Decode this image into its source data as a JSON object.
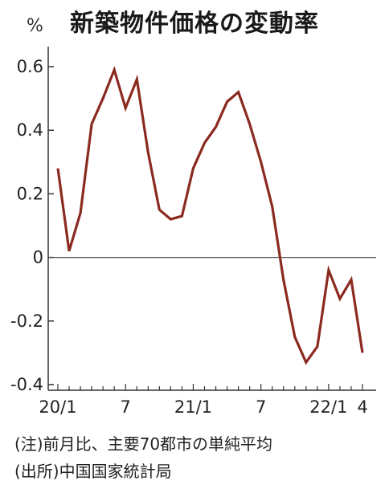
{
  "title": "新築物件価格の変動率",
  "unit": "%",
  "notes": {
    "note": "(注)前月比、主要70都市の単純平均",
    "source": "(出所)中国国家統計局"
  },
  "colors": {
    "line": "#8b2a1f",
    "axis": "#333333",
    "zero_line": "#555555"
  },
  "chart_data": {
    "type": "line",
    "title": "新築物件価格の変動率",
    "ylabel": "%",
    "xlabel": "",
    "ylim": [
      -0.4,
      0.62
    ],
    "yticks": [
      {
        "value": 0.6,
        "label": "0.6"
      },
      {
        "value": 0.4,
        "label": "0.4"
      },
      {
        "value": 0.2,
        "label": "0.2"
      },
      {
        "value": 0,
        "label": "0"
      },
      {
        "value": -0.2,
        "label": "-0.2"
      },
      {
        "value": -0.4,
        "label": "-0.4"
      }
    ],
    "x": [
      "2020/1",
      "2020/2",
      "2020/3",
      "2020/4",
      "2020/5",
      "2020/6",
      "2020/7",
      "2020/8",
      "2020/9",
      "2020/10",
      "2020/11",
      "2020/12",
      "2021/1",
      "2021/2",
      "2021/3",
      "2021/4",
      "2021/5",
      "2021/6",
      "2021/7",
      "2021/8",
      "2021/9",
      "2021/10",
      "2021/11",
      "2021/12",
      "2022/1",
      "2022/2",
      "2022/3",
      "2022/4"
    ],
    "xticks": [
      {
        "index": 0,
        "label": "20/1"
      },
      {
        "index": 6,
        "label": "7"
      },
      {
        "index": 12,
        "label": "21/1"
      },
      {
        "index": 18,
        "label": "7"
      },
      {
        "index": 24,
        "label": "22/1"
      },
      {
        "index": 27,
        "label": "4"
      }
    ],
    "series": [
      {
        "values": [
          0.28,
          0.02,
          0.14,
          0.42,
          0.5,
          0.59,
          0.47,
          0.56,
          0.33,
          0.15,
          0.12,
          0.13,
          0.28,
          0.36,
          0.41,
          0.49,
          0.52,
          0.42,
          0.3,
          0.16,
          -0.07,
          -0.25,
          -0.33,
          -0.28,
          -0.04,
          -0.13,
          -0.07,
          -0.3
        ]
      }
    ],
    "grid": false,
    "legend": "none"
  }
}
